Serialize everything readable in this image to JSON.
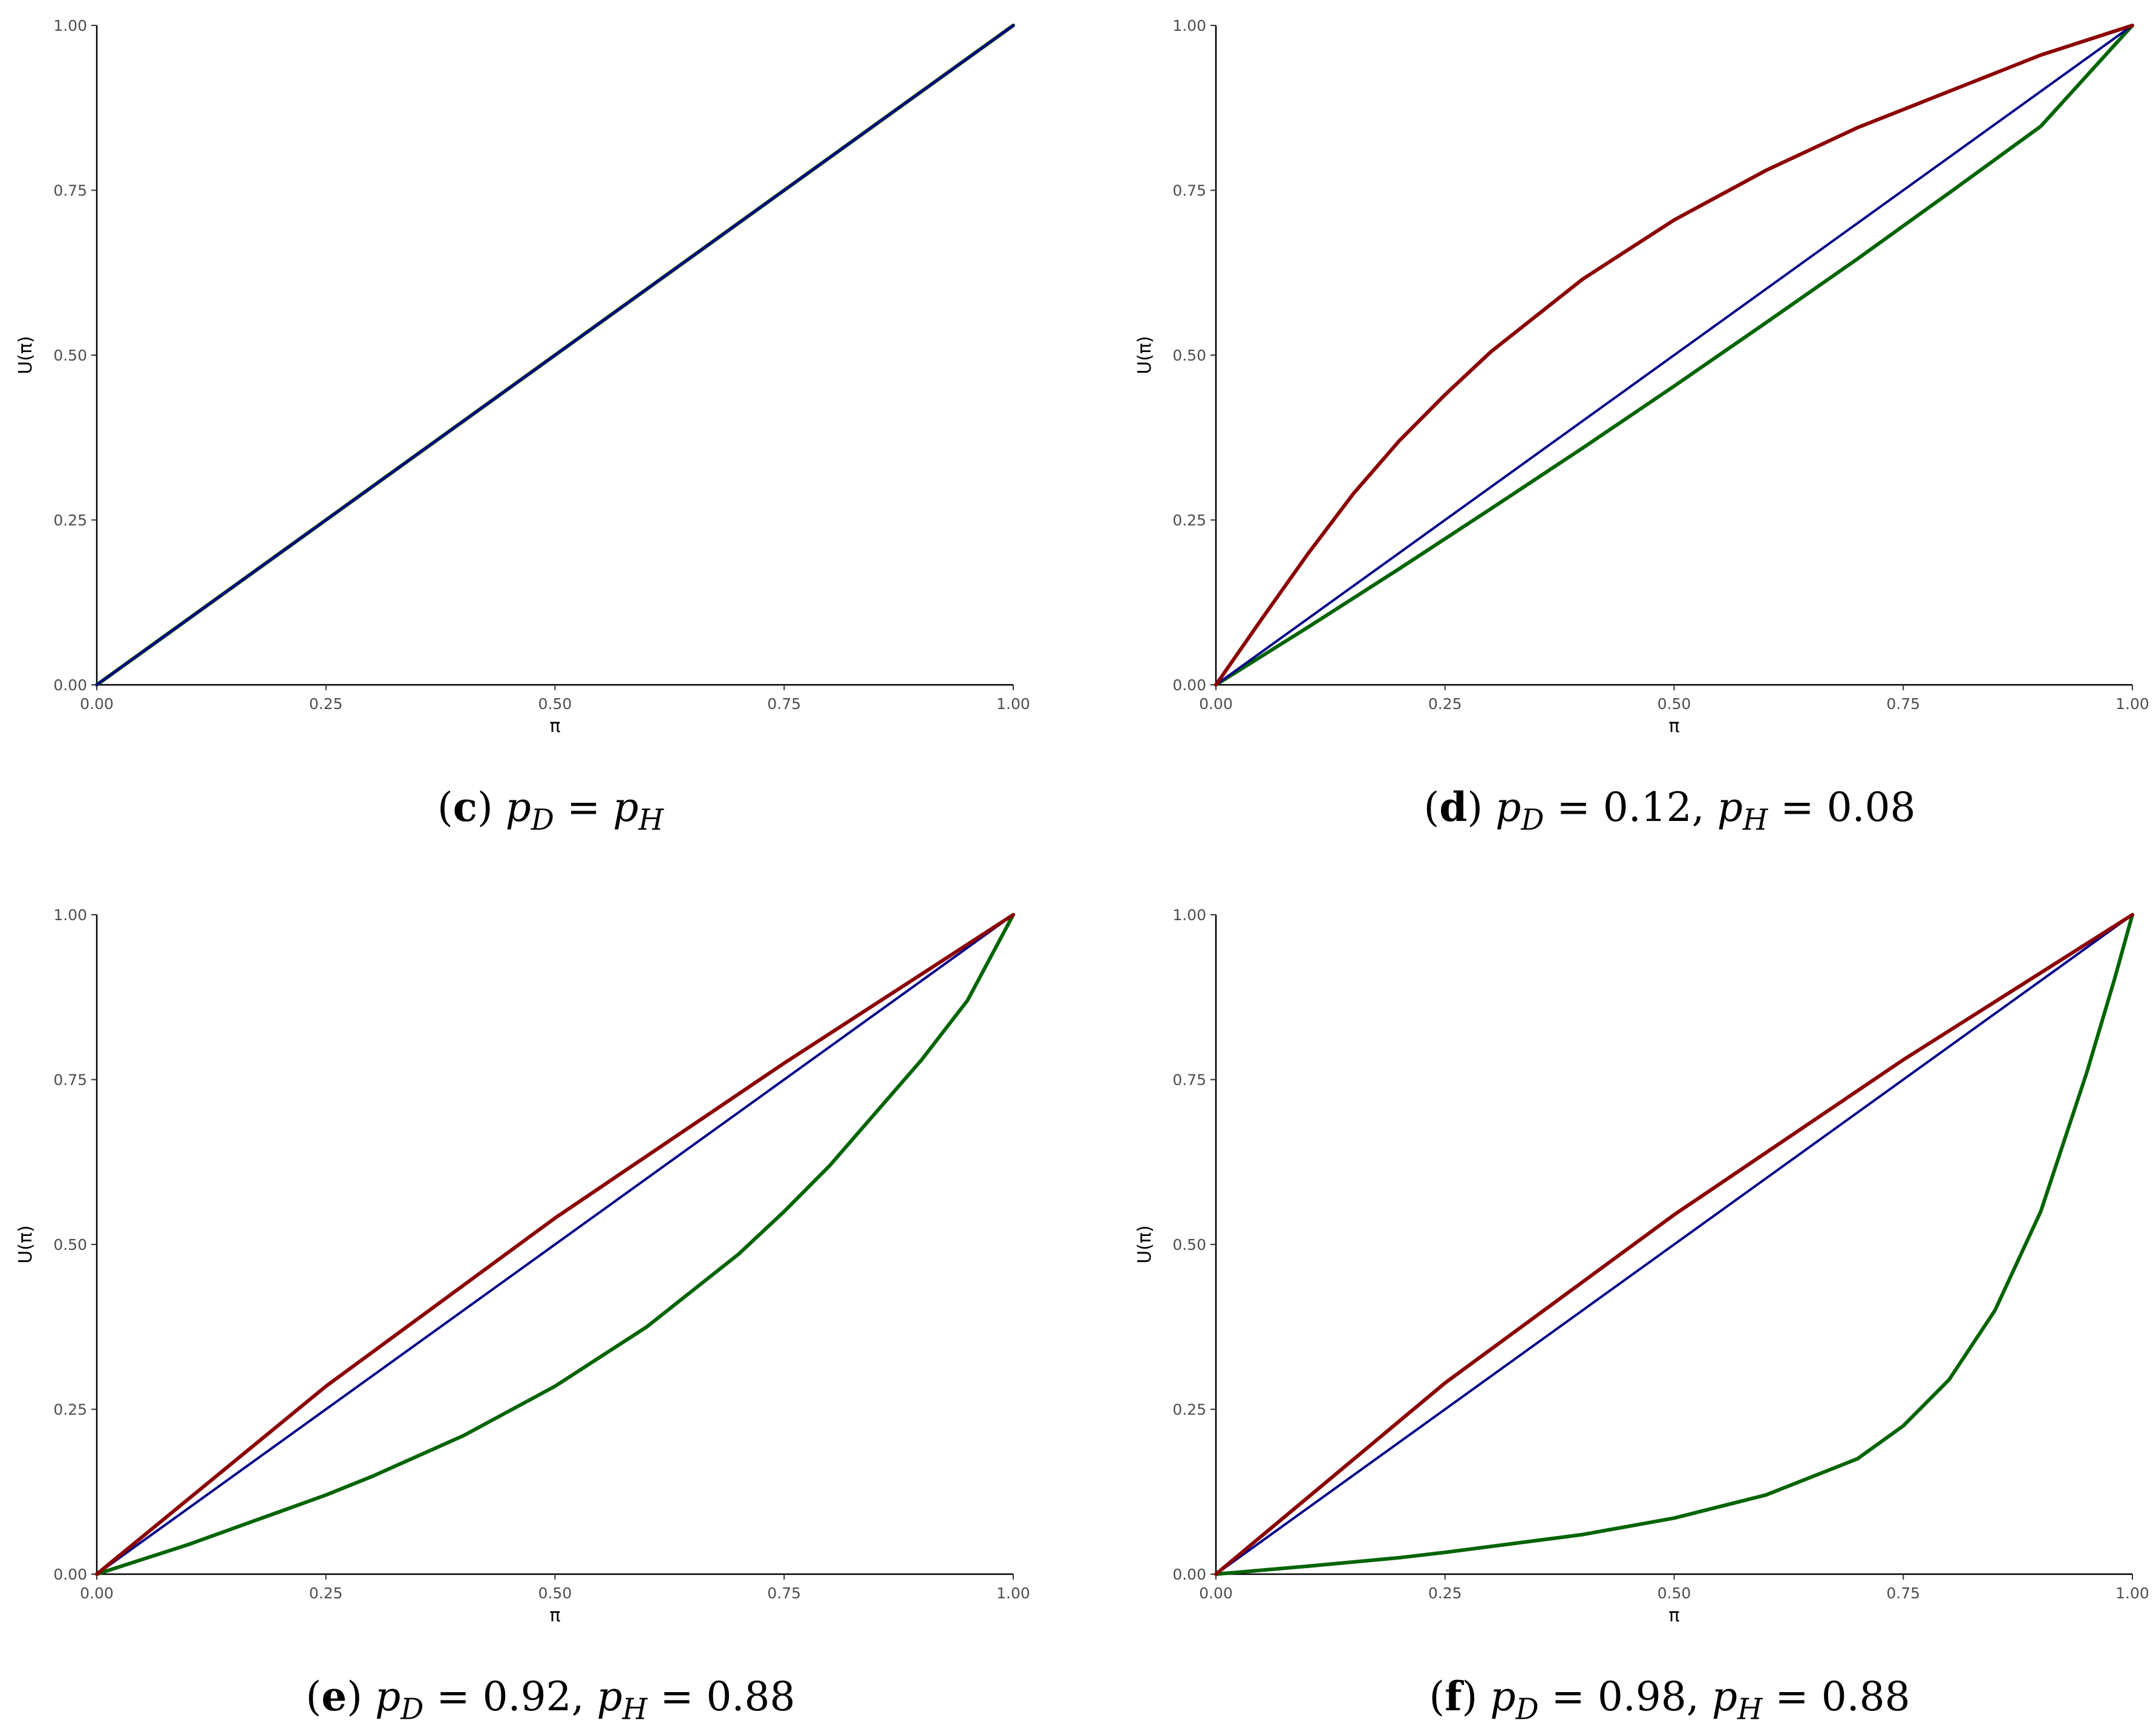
{
  "chart_data": [
    {
      "type": "line",
      "panel_id": "c",
      "caption": {
        "label": "c",
        "text": "p_D = p_H",
        "parts": [
          "(",
          "c",
          ") ",
          "p",
          "D",
          " = ",
          "p",
          "H",
          ""
        ]
      },
      "xlabel": "π",
      "ylabel": "U(π)",
      "xlim": [
        0,
        1
      ],
      "ylim": [
        0,
        1
      ],
      "xticks": [
        "0.00",
        "0.25",
        "0.50",
        "0.75",
        "1.00"
      ],
      "yticks": [
        "0.00",
        "0.25",
        "0.50",
        "0.75",
        "1.00"
      ],
      "series": [
        {
          "name": "red",
          "color": "#8b0000",
          "width": 6,
          "x": [
            0,
            0.25,
            0.5,
            0.75,
            1
          ],
          "y": [
            0,
            0.25,
            0.5,
            0.75,
            1
          ]
        },
        {
          "name": "green",
          "color": "#006400",
          "width": 6,
          "x": [
            0,
            0.25,
            0.5,
            0.75,
            1
          ],
          "y": [
            0,
            0.25,
            0.5,
            0.75,
            1
          ]
        },
        {
          "name": "blue",
          "color": "#00008b",
          "width": 4,
          "x": [
            0,
            0.25,
            0.5,
            0.75,
            1
          ],
          "y": [
            0,
            0.25,
            0.5,
            0.75,
            1
          ]
        }
      ]
    },
    {
      "type": "line",
      "panel_id": "d",
      "caption": {
        "label": "d",
        "text": "p_D = 0.12, p_H = 0.08",
        "parts": [
          "(",
          "d",
          ") ",
          "p",
          "D",
          " = 0.12, ",
          "p",
          "H",
          " = 0.08"
        ]
      },
      "xlabel": "π",
      "ylabel": "U(π)",
      "xlim": [
        0,
        1
      ],
      "ylim": [
        0,
        1
      ],
      "xticks": [
        "0.00",
        "0.25",
        "0.50",
        "0.75",
        "1.00"
      ],
      "yticks": [
        "0.00",
        "0.25",
        "0.50",
        "0.75",
        "1.00"
      ],
      "series": [
        {
          "name": "green",
          "color": "#006400",
          "width": 6,
          "x": [
            0,
            0.1,
            0.2,
            0.3,
            0.4,
            0.5,
            0.6,
            0.7,
            0.8,
            0.9,
            1
          ],
          "y": [
            0,
            0.087,
            0.176,
            0.267,
            0.359,
            0.453,
            0.549,
            0.646,
            0.746,
            0.847,
            1
          ]
        },
        {
          "name": "blue",
          "color": "#00008b",
          "width": 4,
          "x": [
            0,
            1
          ],
          "y": [
            0,
            1
          ]
        },
        {
          "name": "red",
          "color": "#8b0000",
          "width": 6,
          "x": [
            0,
            0.05,
            0.1,
            0.15,
            0.2,
            0.25,
            0.3,
            0.4,
            0.5,
            0.6,
            0.7,
            0.8,
            0.9,
            1
          ],
          "y": [
            0,
            0.1,
            0.198,
            0.29,
            0.37,
            0.44,
            0.505,
            0.615,
            0.705,
            0.78,
            0.845,
            0.9,
            0.955,
            1
          ]
        }
      ]
    },
    {
      "type": "line",
      "panel_id": "e",
      "caption": {
        "label": "e",
        "text": "p_D = 0.92, p_H = 0.88",
        "parts": [
          "(",
          "e",
          ") ",
          "p",
          "D",
          " = 0.92, ",
          "p",
          "H",
          " = 0.88"
        ]
      },
      "xlabel": "π",
      "ylabel": "U(π)",
      "xlim": [
        0,
        1
      ],
      "ylim": [
        0,
        1
      ],
      "xticks": [
        "0.00",
        "0.25",
        "0.50",
        "0.75",
        "1.00"
      ],
      "yticks": [
        "0.00",
        "0.25",
        "0.50",
        "0.75",
        "1.00"
      ],
      "series": [
        {
          "name": "green",
          "color": "#006400",
          "width": 6,
          "x": [
            0,
            0.1,
            0.2,
            0.25,
            0.3,
            0.4,
            0.5,
            0.6,
            0.7,
            0.75,
            0.8,
            0.9,
            0.95,
            1
          ],
          "y": [
            0,
            0.045,
            0.095,
            0.12,
            0.148,
            0.21,
            0.285,
            0.375,
            0.485,
            0.55,
            0.62,
            0.78,
            0.87,
            1
          ]
        },
        {
          "name": "blue",
          "color": "#00008b",
          "width": 4,
          "x": [
            0,
            1
          ],
          "y": [
            0,
            1
          ]
        },
        {
          "name": "red",
          "color": "#8b0000",
          "width": 6,
          "x": [
            0,
            0.25,
            0.5,
            0.75,
            1
          ],
          "y": [
            0,
            0.285,
            0.54,
            0.775,
            1
          ]
        }
      ]
    },
    {
      "type": "line",
      "panel_id": "f",
      "caption": {
        "label": "f",
        "text": "p_D = 0.98, p_H = 0.88",
        "parts": [
          "(",
          "f",
          ") ",
          "p",
          "D",
          " = 0.98, ",
          "p",
          "H",
          " = 0.88"
        ]
      },
      "xlabel": "π",
      "ylabel": "U(π)",
      "xlim": [
        0,
        1
      ],
      "ylim": [
        0,
        1
      ],
      "xticks": [
        "0.00",
        "0.25",
        "0.50",
        "0.75",
        "1.00"
      ],
      "yticks": [
        "0.00",
        "0.25",
        "0.50",
        "0.75",
        "1.00"
      ],
      "series": [
        {
          "name": "green",
          "color": "#006400",
          "width": 6,
          "x": [
            0,
            0.1,
            0.2,
            0.25,
            0.3,
            0.4,
            0.5,
            0.6,
            0.7,
            0.75,
            0.8,
            0.85,
            0.9,
            0.95,
            0.98,
            1
          ],
          "y": [
            0,
            0.012,
            0.025,
            0.033,
            0.042,
            0.06,
            0.085,
            0.12,
            0.175,
            0.225,
            0.295,
            0.4,
            0.55,
            0.76,
            0.9,
            1
          ]
        },
        {
          "name": "blue",
          "color": "#00008b",
          "width": 4,
          "x": [
            0,
            1
          ],
          "y": [
            0,
            1
          ]
        },
        {
          "name": "red",
          "color": "#8b0000",
          "width": 6,
          "x": [
            0,
            0.25,
            0.5,
            0.75,
            1
          ],
          "y": [
            0,
            0.29,
            0.545,
            0.78,
            1
          ]
        }
      ]
    }
  ]
}
